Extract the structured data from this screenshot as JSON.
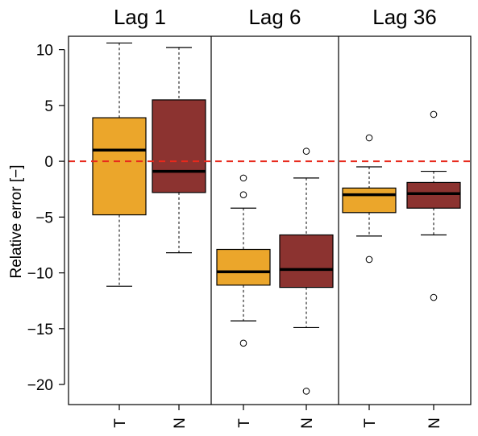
{
  "chart_data": {
    "type": "box",
    "ylabel": "Relative error [−]",
    "ylim": [
      -21.8,
      11.2
    ],
    "yticks": [
      "10",
      "5",
      "0",
      "−5",
      "−10",
      "−15",
      "−20"
    ],
    "ytick_values": [
      10,
      5,
      0,
      -5,
      -10,
      -15,
      -20
    ],
    "reference_line": {
      "y": 0,
      "color": "#e8291c",
      "style": "dashed"
    },
    "series_colors": {
      "T": "#eba62b",
      "N": "#8c3330"
    },
    "panels": [
      {
        "title": "Lag 1",
        "boxes": [
          {
            "category": "T",
            "min": -11.2,
            "q1": -4.8,
            "median": 1.0,
            "q3": 3.9,
            "max": 10.6,
            "outliers": []
          },
          {
            "category": "N",
            "min": -8.2,
            "q1": -2.8,
            "median": -0.9,
            "q3": 5.5,
            "max": 10.2,
            "outliers": []
          }
        ]
      },
      {
        "title": "Lag 6",
        "boxes": [
          {
            "category": "T",
            "min": -14.3,
            "q1": -11.1,
            "median": -9.9,
            "q3": -7.9,
            "max": -4.2,
            "outliers": [
              -1.5,
              -3.0,
              -16.3
            ]
          },
          {
            "category": "N",
            "min": -14.9,
            "q1": -11.3,
            "median": -9.7,
            "q3": -6.6,
            "max": -1.5,
            "outliers": [
              0.9,
              -20.6
            ]
          }
        ]
      },
      {
        "title": "Lag 36",
        "boxes": [
          {
            "category": "T",
            "min": -6.7,
            "q1": -4.6,
            "median": -3.0,
            "q3": -2.4,
            "max": -0.5,
            "outliers": [
              2.1,
              -8.8
            ]
          },
          {
            "category": "N",
            "min": -6.6,
            "q1": -4.2,
            "median": -2.9,
            "q3": -1.9,
            "max": -0.9,
            "outliers": [
              4.2,
              -12.2
            ]
          }
        ]
      }
    ]
  }
}
